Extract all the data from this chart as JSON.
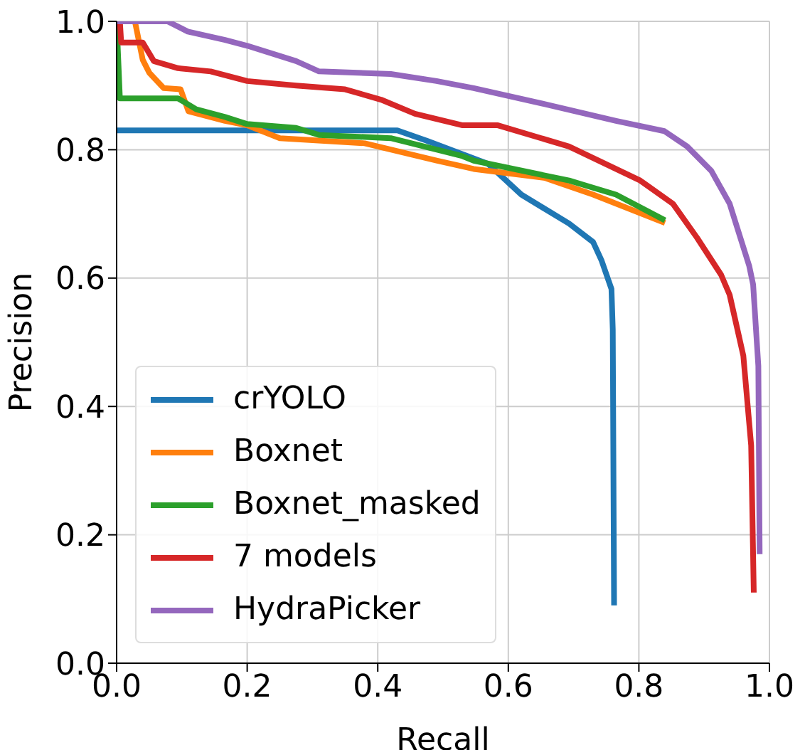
{
  "chart_data": {
    "type": "line",
    "xlabel": "Recall",
    "ylabel": "Precision",
    "xlim": [
      0,
      1
    ],
    "ylim": [
      0,
      1
    ],
    "xticks": [
      "0.0",
      0.2,
      0.4,
      0.6,
      0.8,
      "1.0"
    ],
    "yticks": [
      "0.0",
      0.2,
      0.4,
      0.6,
      0.8,
      "1.0"
    ],
    "grid": true,
    "legend": "bottom left",
    "marker": "none",
    "line_style": "solid",
    "series": [
      {
        "name": "crYOLO",
        "color": "#1f77b4",
        "x": [
          0,
          0.2,
          0.43,
          0.475,
          0.569,
          0.62,
          0.693,
          0.73,
          0.743,
          0.758,
          0.76,
          0.762
        ],
        "values": [
          0.83,
          0.83,
          0.83,
          0.814,
          0.778,
          0.73,
          0.685,
          0.656,
          0.627,
          0.583,
          0.52,
          0.09
        ]
      },
      {
        "name": "Boxnet",
        "color": "#ff7f0e",
        "x": [
          0.02,
          0.028,
          0.04,
          0.05,
          0.072,
          0.098,
          0.11,
          0.166,
          0.2,
          0.25,
          0.38,
          0.49,
          0.547,
          0.656,
          0.73,
          0.84
        ],
        "values": [
          1.0,
          1.0,
          0.94,
          0.92,
          0.896,
          0.894,
          0.86,
          0.845,
          0.838,
          0.818,
          0.81,
          0.783,
          0.77,
          0.756,
          0.73,
          0.686
        ]
      },
      {
        "name": "Boxnet_masked",
        "color": "#2ca02c",
        "x": [
          0,
          0.005,
          0.094,
          0.122,
          0.166,
          0.2,
          0.275,
          0.31,
          0.42,
          0.53,
          0.547,
          0.693,
          0.765,
          0.84
        ],
        "values": [
          1.0,
          0.88,
          0.88,
          0.863,
          0.851,
          0.84,
          0.834,
          0.823,
          0.818,
          0.79,
          0.783,
          0.752,
          0.73,
          0.69
        ]
      },
      {
        "name": "7 models",
        "color": "#d62728",
        "x": [
          0.005,
          0.007,
          0.04,
          0.057,
          0.094,
          0.144,
          0.2,
          0.275,
          0.35,
          0.405,
          0.457,
          0.53,
          0.584,
          0.693,
          0.802,
          0.852,
          0.889,
          0.926,
          0.939,
          0.96,
          0.972,
          0.976
        ],
        "values": [
          1.0,
          0.967,
          0.967,
          0.938,
          0.927,
          0.922,
          0.907,
          0.9,
          0.894,
          0.878,
          0.856,
          0.838,
          0.838,
          0.805,
          0.752,
          0.716,
          0.663,
          0.605,
          0.574,
          0.479,
          0.339,
          0.11
        ]
      },
      {
        "name": "HydraPicker",
        "color": "#9467bd",
        "x": [
          0,
          0.078,
          0.109,
          0.166,
          0.2,
          0.275,
          0.31,
          0.42,
          0.49,
          0.547,
          0.656,
          0.765,
          0.839,
          0.874,
          0.911,
          0.939,
          0.969,
          0.975,
          0.983,
          0.985
        ],
        "values": [
          1.0,
          1.0,
          0.984,
          0.971,
          0.962,
          0.938,
          0.922,
          0.918,
          0.907,
          0.896,
          0.871,
          0.845,
          0.829,
          0.805,
          0.767,
          0.716,
          0.619,
          0.59,
          0.463,
          0.17
        ]
      }
    ]
  }
}
